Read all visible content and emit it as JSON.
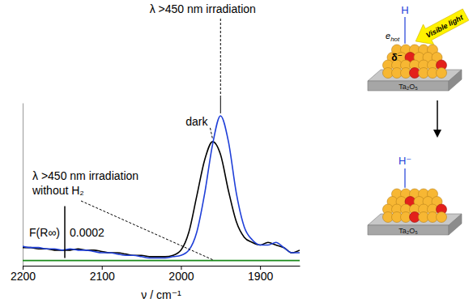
{
  "chart_data": {
    "type": "line",
    "x_label": "ν / cm⁻¹",
    "xlim": [
      2200,
      1850
    ],
    "xticks": [
      2200,
      2100,
      2000,
      1900
    ],
    "ylim": [
      -3e-05,
      0.0006
    ],
    "yticks": [],
    "tick_labels": "x",
    "grid": false,
    "x": [
      2200,
      2190,
      2180,
      2170,
      2160,
      2150,
      2140,
      2130,
      2120,
      2110,
      2100,
      2090,
      2080,
      2070,
      2060,
      2050,
      2040,
      2030,
      2020,
      2010,
      2000,
      1990,
      1980,
      1970,
      1960,
      1950,
      1940,
      1930,
      1920,
      1910,
      1900,
      1890,
      1880,
      1870,
      1860,
      1850
    ],
    "series": [
      {
        "name": "dark",
        "color": "#000000",
        "values": [
          4e-05,
          4e-05,
          3.5e-05,
          3.5e-05,
          3e-05,
          3e-05,
          3e-05,
          3.5e-05,
          3e-05,
          3e-05,
          2.5e-05,
          2e-05,
          2e-05,
          1.5e-05,
          1e-05,
          1e-05,
          5e-06,
          5e-06,
          5e-06,
          1e-05,
          3e-05,
          0.0001,
          0.00024,
          0.00038,
          0.00045,
          0.0004,
          0.00026,
          0.00014,
          8e-05,
          6e-05,
          5e-05,
          6e-05,
          5e-05,
          4e-05,
          2e-05,
          3e-05
        ]
      },
      {
        "name": "λ >450 nm irradiation",
        "color": "#1f3fd8",
        "values": [
          4.5e-05,
          4e-05,
          4e-05,
          3.5e-05,
          3.5e-05,
          3e-05,
          3.5e-05,
          3e-05,
          3e-05,
          2.5e-05,
          2e-05,
          2e-05,
          1.5e-05,
          1e-05,
          1e-05,
          5e-06,
          0,
          0,
          0,
          5e-06,
          1e-05,
          3e-05,
          0.0001,
          0.00025,
          0.00044,
          0.00055,
          0.00045,
          0.00025,
          0.00012,
          7e-05,
          5e-05,
          5e-05,
          6e-05,
          4e-05,
          2e-05,
          2e-05
        ]
      },
      {
        "name": "λ >450 nm irradiation without H₂",
        "color": "#1a8a1a",
        "values": [
          -1e-05,
          -1e-05,
          -1e-05,
          -1e-05,
          -1e-05,
          -1e-05,
          -1e-05,
          -1e-05,
          -1e-05,
          -1e-05,
          -1e-05,
          -1e-05,
          -1e-05,
          -1e-05,
          -1e-05,
          -1e-05,
          -1e-05,
          -1e-05,
          -1e-05,
          -1e-05,
          -1e-05,
          -1e-05,
          -1e-05,
          -1e-05,
          -1e-05,
          -1e-05,
          -1e-05,
          -1e-05,
          -1e-05,
          -1e-05,
          -1e-05,
          -1e-05,
          -1e-05,
          -1e-05,
          -1e-05,
          -1e-05
        ]
      }
    ],
    "scale_bar": {
      "title": "F(R∞)",
      "value": 0.0002
    }
  },
  "diagram": {
    "light": "Visible light",
    "support": "Ta₂O₅",
    "before": {
      "adsorbate": "H",
      "electron": {
        "text": "e",
        "subscript": "hot"
      },
      "charge": "δ⁻"
    },
    "after": {
      "adsorbate": "H⁻"
    }
  }
}
